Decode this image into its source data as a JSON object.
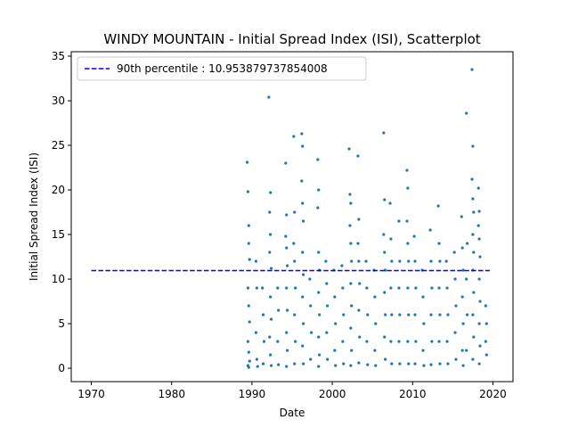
{
  "chart_data": {
    "type": "scatter",
    "title": "WINDY MOUNTAIN - Initial Spread Index (ISI), Scatterplot",
    "xlabel": "Date",
    "ylabel": "Initial Spread Index (ISI)",
    "xlim": [
      1967.5,
      2022.5
    ],
    "ylim": [
      -1.5,
      35.5
    ],
    "x_ticks": [
      1970,
      1980,
      1990,
      2000,
      2010,
      2020
    ],
    "y_ticks": [
      0,
      5,
      10,
      15,
      20,
      25,
      30,
      35
    ],
    "grid": false,
    "legend_position": "top-left",
    "point_color": "#1f77b4",
    "reference_line": {
      "label": "90th percentile : 10.953879737854008",
      "value": 10.953879737854008,
      "x_range": [
        1970,
        2019.6
      ],
      "color": "#0000ff",
      "style": "dashed"
    },
    "series": [
      {
        "values_note": "",
        "points": [
          [
            1989.4,
            23.1
          ],
          [
            1989.5,
            19.8
          ],
          [
            1989.6,
            16.0
          ],
          [
            1989.6,
            14.0
          ],
          [
            1989.7,
            12.2
          ],
          [
            1989.5,
            9.0
          ],
          [
            1989.6,
            7.0
          ],
          [
            1989.7,
            5.2
          ],
          [
            1989.5,
            3.0
          ],
          [
            1989.6,
            1.8
          ],
          [
            1989.7,
            0.8
          ],
          [
            1989.5,
            0.3
          ],
          [
            1989.6,
            0.1
          ],
          [
            1990.5,
            12.0
          ],
          [
            1990.6,
            9.0
          ],
          [
            1990.5,
            4.0
          ],
          [
            1990.6,
            1.0
          ],
          [
            1990.7,
            0.2
          ],
          [
            1991.3,
            9.0
          ],
          [
            1991.4,
            6.0
          ],
          [
            1991.5,
            3.0
          ],
          [
            1991.4,
            0.5
          ],
          [
            1992.1,
            30.4
          ],
          [
            1992.3,
            19.7
          ],
          [
            1992.2,
            17.5
          ],
          [
            1992.3,
            15.0
          ],
          [
            1992.2,
            13.0
          ],
          [
            1992.4,
            11.2
          ],
          [
            1992.3,
            8.0
          ],
          [
            1992.4,
            5.5
          ],
          [
            1992.2,
            3.5
          ],
          [
            1992.3,
            1.5
          ],
          [
            1992.4,
            0.3
          ],
          [
            1993.2,
            9.0
          ],
          [
            1993.3,
            6.5
          ],
          [
            1993.2,
            3.0
          ],
          [
            1993.3,
            0.4
          ],
          [
            1994.2,
            23.0
          ],
          [
            1994.3,
            17.2
          ],
          [
            1994.2,
            14.8
          ],
          [
            1994.3,
            13.5
          ],
          [
            1994.4,
            11.5
          ],
          [
            1994.3,
            9.0
          ],
          [
            1994.4,
            6.5
          ],
          [
            1994.3,
            4.0
          ],
          [
            1994.4,
            2.0
          ],
          [
            1994.3,
            0.2
          ],
          [
            1995.2,
            26.0
          ],
          [
            1995.3,
            17.5
          ],
          [
            1995.2,
            14.0
          ],
          [
            1995.3,
            12.0
          ],
          [
            1995.4,
            9.0
          ],
          [
            1995.3,
            6.0
          ],
          [
            1995.4,
            3.0
          ],
          [
            1995.3,
            0.5
          ],
          [
            1996.2,
            26.3
          ],
          [
            1996.3,
            24.9
          ],
          [
            1996.2,
            21.0
          ],
          [
            1996.3,
            18.5
          ],
          [
            1996.4,
            16.5
          ],
          [
            1996.3,
            13.0
          ],
          [
            1996.4,
            10.5
          ],
          [
            1996.3,
            8.0
          ],
          [
            1996.4,
            5.0
          ],
          [
            1996.3,
            2.5
          ],
          [
            1996.4,
            0.5
          ],
          [
            1997.2,
            10.0
          ],
          [
            1997.3,
            7.0
          ],
          [
            1997.4,
            4.0
          ],
          [
            1997.3,
            1.0
          ],
          [
            1998.2,
            23.4
          ],
          [
            1998.3,
            20.0
          ],
          [
            1998.2,
            18.0
          ],
          [
            1998.3,
            13.0
          ],
          [
            1998.4,
            11.0
          ],
          [
            1998.3,
            8.5
          ],
          [
            1998.4,
            6.0
          ],
          [
            1998.3,
            3.5
          ],
          [
            1998.4,
            1.5
          ],
          [
            1998.3,
            0.2
          ],
          [
            1999.2,
            12.0
          ],
          [
            1999.3,
            9.5
          ],
          [
            1999.4,
            7.0
          ],
          [
            1999.3,
            4.0
          ],
          [
            1999.4,
            1.0
          ],
          [
            2000.2,
            11.0
          ],
          [
            2000.3,
            8.0
          ],
          [
            2000.4,
            5.0
          ],
          [
            2000.3,
            2.0
          ],
          [
            2000.4,
            0.3
          ],
          [
            2001.2,
            11.5
          ],
          [
            2001.3,
            9.0
          ],
          [
            2001.4,
            6.0
          ],
          [
            2001.3,
            3.0
          ],
          [
            2001.4,
            0.5
          ],
          [
            2002.1,
            24.6
          ],
          [
            2002.2,
            19.5
          ],
          [
            2002.3,
            18.5
          ],
          [
            2002.2,
            16.0
          ],
          [
            2002.3,
            14.0
          ],
          [
            2002.4,
            12.0
          ],
          [
            2002.3,
            9.5
          ],
          [
            2002.4,
            7.0
          ],
          [
            2002.3,
            4.5
          ],
          [
            2002.4,
            2.0
          ],
          [
            2002.3,
            0.3
          ],
          [
            2003.2,
            23.8
          ],
          [
            2003.3,
            16.7
          ],
          [
            2003.2,
            14.0
          ],
          [
            2003.3,
            12.0
          ],
          [
            2003.4,
            9.5
          ],
          [
            2003.3,
            6.5
          ],
          [
            2003.4,
            3.5
          ],
          [
            2003.3,
            0.6
          ],
          [
            2004.2,
            12.0
          ],
          [
            2004.3,
            9.0
          ],
          [
            2004.4,
            6.0
          ],
          [
            2004.3,
            3.0
          ],
          [
            2004.4,
            0.4
          ],
          [
            2005.2,
            11.0
          ],
          [
            2005.3,
            8.0
          ],
          [
            2005.4,
            5.0
          ],
          [
            2005.3,
            2.0
          ],
          [
            2005.4,
            0.3
          ],
          [
            2006.4,
            26.4
          ],
          [
            2006.5,
            18.9
          ],
          [
            2006.4,
            15.0
          ],
          [
            2006.5,
            13.0
          ],
          [
            2006.6,
            11.0
          ],
          [
            2006.5,
            8.5
          ],
          [
            2006.6,
            6.0
          ],
          [
            2006.5,
            3.5
          ],
          [
            2006.6,
            1.0
          ],
          [
            2007.2,
            18.5
          ],
          [
            2007.3,
            14.5
          ],
          [
            2007.4,
            12.0
          ],
          [
            2007.3,
            9.0
          ],
          [
            2007.4,
            6.0
          ],
          [
            2007.3,
            3.0
          ],
          [
            2007.4,
            0.5
          ],
          [
            2008.3,
            16.5
          ],
          [
            2008.4,
            12.0
          ],
          [
            2008.3,
            9.0
          ],
          [
            2008.4,
            6.0
          ],
          [
            2008.3,
            3.0
          ],
          [
            2008.4,
            0.5
          ],
          [
            2009.3,
            22.2
          ],
          [
            2009.4,
            20.2
          ],
          [
            2009.3,
            16.5
          ],
          [
            2009.4,
            14.0
          ],
          [
            2009.5,
            12.0
          ],
          [
            2009.4,
            9.0
          ],
          [
            2009.5,
            6.0
          ],
          [
            2009.4,
            3.0
          ],
          [
            2009.5,
            0.5
          ],
          [
            2010.2,
            14.8
          ],
          [
            2010.3,
            12.0
          ],
          [
            2010.4,
            9.0
          ],
          [
            2010.3,
            6.0
          ],
          [
            2010.4,
            3.0
          ],
          [
            2010.3,
            0.5
          ],
          [
            2011.2,
            11.0
          ],
          [
            2011.3,
            8.0
          ],
          [
            2011.4,
            5.0
          ],
          [
            2011.3,
            2.0
          ],
          [
            2011.4,
            0.3
          ],
          [
            2012.2,
            15.5
          ],
          [
            2012.3,
            12.0
          ],
          [
            2012.4,
            9.0
          ],
          [
            2012.3,
            6.0
          ],
          [
            2012.4,
            3.0
          ],
          [
            2012.3,
            0.4
          ],
          [
            2013.2,
            18.2
          ],
          [
            2013.3,
            14.0
          ],
          [
            2013.4,
            12.0
          ],
          [
            2013.3,
            9.0
          ],
          [
            2013.4,
            6.0
          ],
          [
            2013.3,
            3.0
          ],
          [
            2013.4,
            0.5
          ],
          [
            2014.2,
            12.0
          ],
          [
            2014.3,
            9.0
          ],
          [
            2014.4,
            6.0
          ],
          [
            2014.3,
            3.0
          ],
          [
            2014.4,
            0.5
          ],
          [
            2015.2,
            13.0
          ],
          [
            2015.3,
            10.0
          ],
          [
            2015.4,
            7.0
          ],
          [
            2015.3,
            4.0
          ],
          [
            2015.4,
            1.0
          ],
          [
            2016.1,
            17.0
          ],
          [
            2016.2,
            13.5
          ],
          [
            2016.3,
            11.0
          ],
          [
            2016.2,
            8.0
          ],
          [
            2016.3,
            5.0
          ],
          [
            2016.2,
            2.0
          ],
          [
            2016.3,
            0.3
          ],
          [
            2016.7,
            28.6
          ],
          [
            2016.8,
            14.0
          ],
          [
            2016.7,
            10.0
          ],
          [
            2016.8,
            6.0
          ],
          [
            2016.7,
            2.0
          ],
          [
            2017.4,
            33.5
          ],
          [
            2017.5,
            24.9
          ],
          [
            2017.4,
            21.2
          ],
          [
            2017.5,
            19.0
          ],
          [
            2017.6,
            17.5
          ],
          [
            2017.5,
            15.0
          ],
          [
            2017.6,
            13.0
          ],
          [
            2017.5,
            11.0
          ],
          [
            2017.6,
            8.5
          ],
          [
            2017.5,
            6.0
          ],
          [
            2017.6,
            3.5
          ],
          [
            2017.5,
            1.0
          ],
          [
            2018.2,
            20.2
          ],
          [
            2018.3,
            17.6
          ],
          [
            2018.2,
            16.0
          ],
          [
            2018.3,
            14.5
          ],
          [
            2018.4,
            12.5
          ],
          [
            2018.3,
            10.0
          ],
          [
            2018.4,
            7.5
          ],
          [
            2018.3,
            5.0
          ],
          [
            2018.4,
            2.5
          ],
          [
            2018.3,
            0.5
          ],
          [
            2019.1,
            7.0
          ],
          [
            2019.2,
            5.0
          ],
          [
            2019.1,
            3.0
          ],
          [
            2019.2,
            1.5
          ]
        ]
      }
    ]
  }
}
